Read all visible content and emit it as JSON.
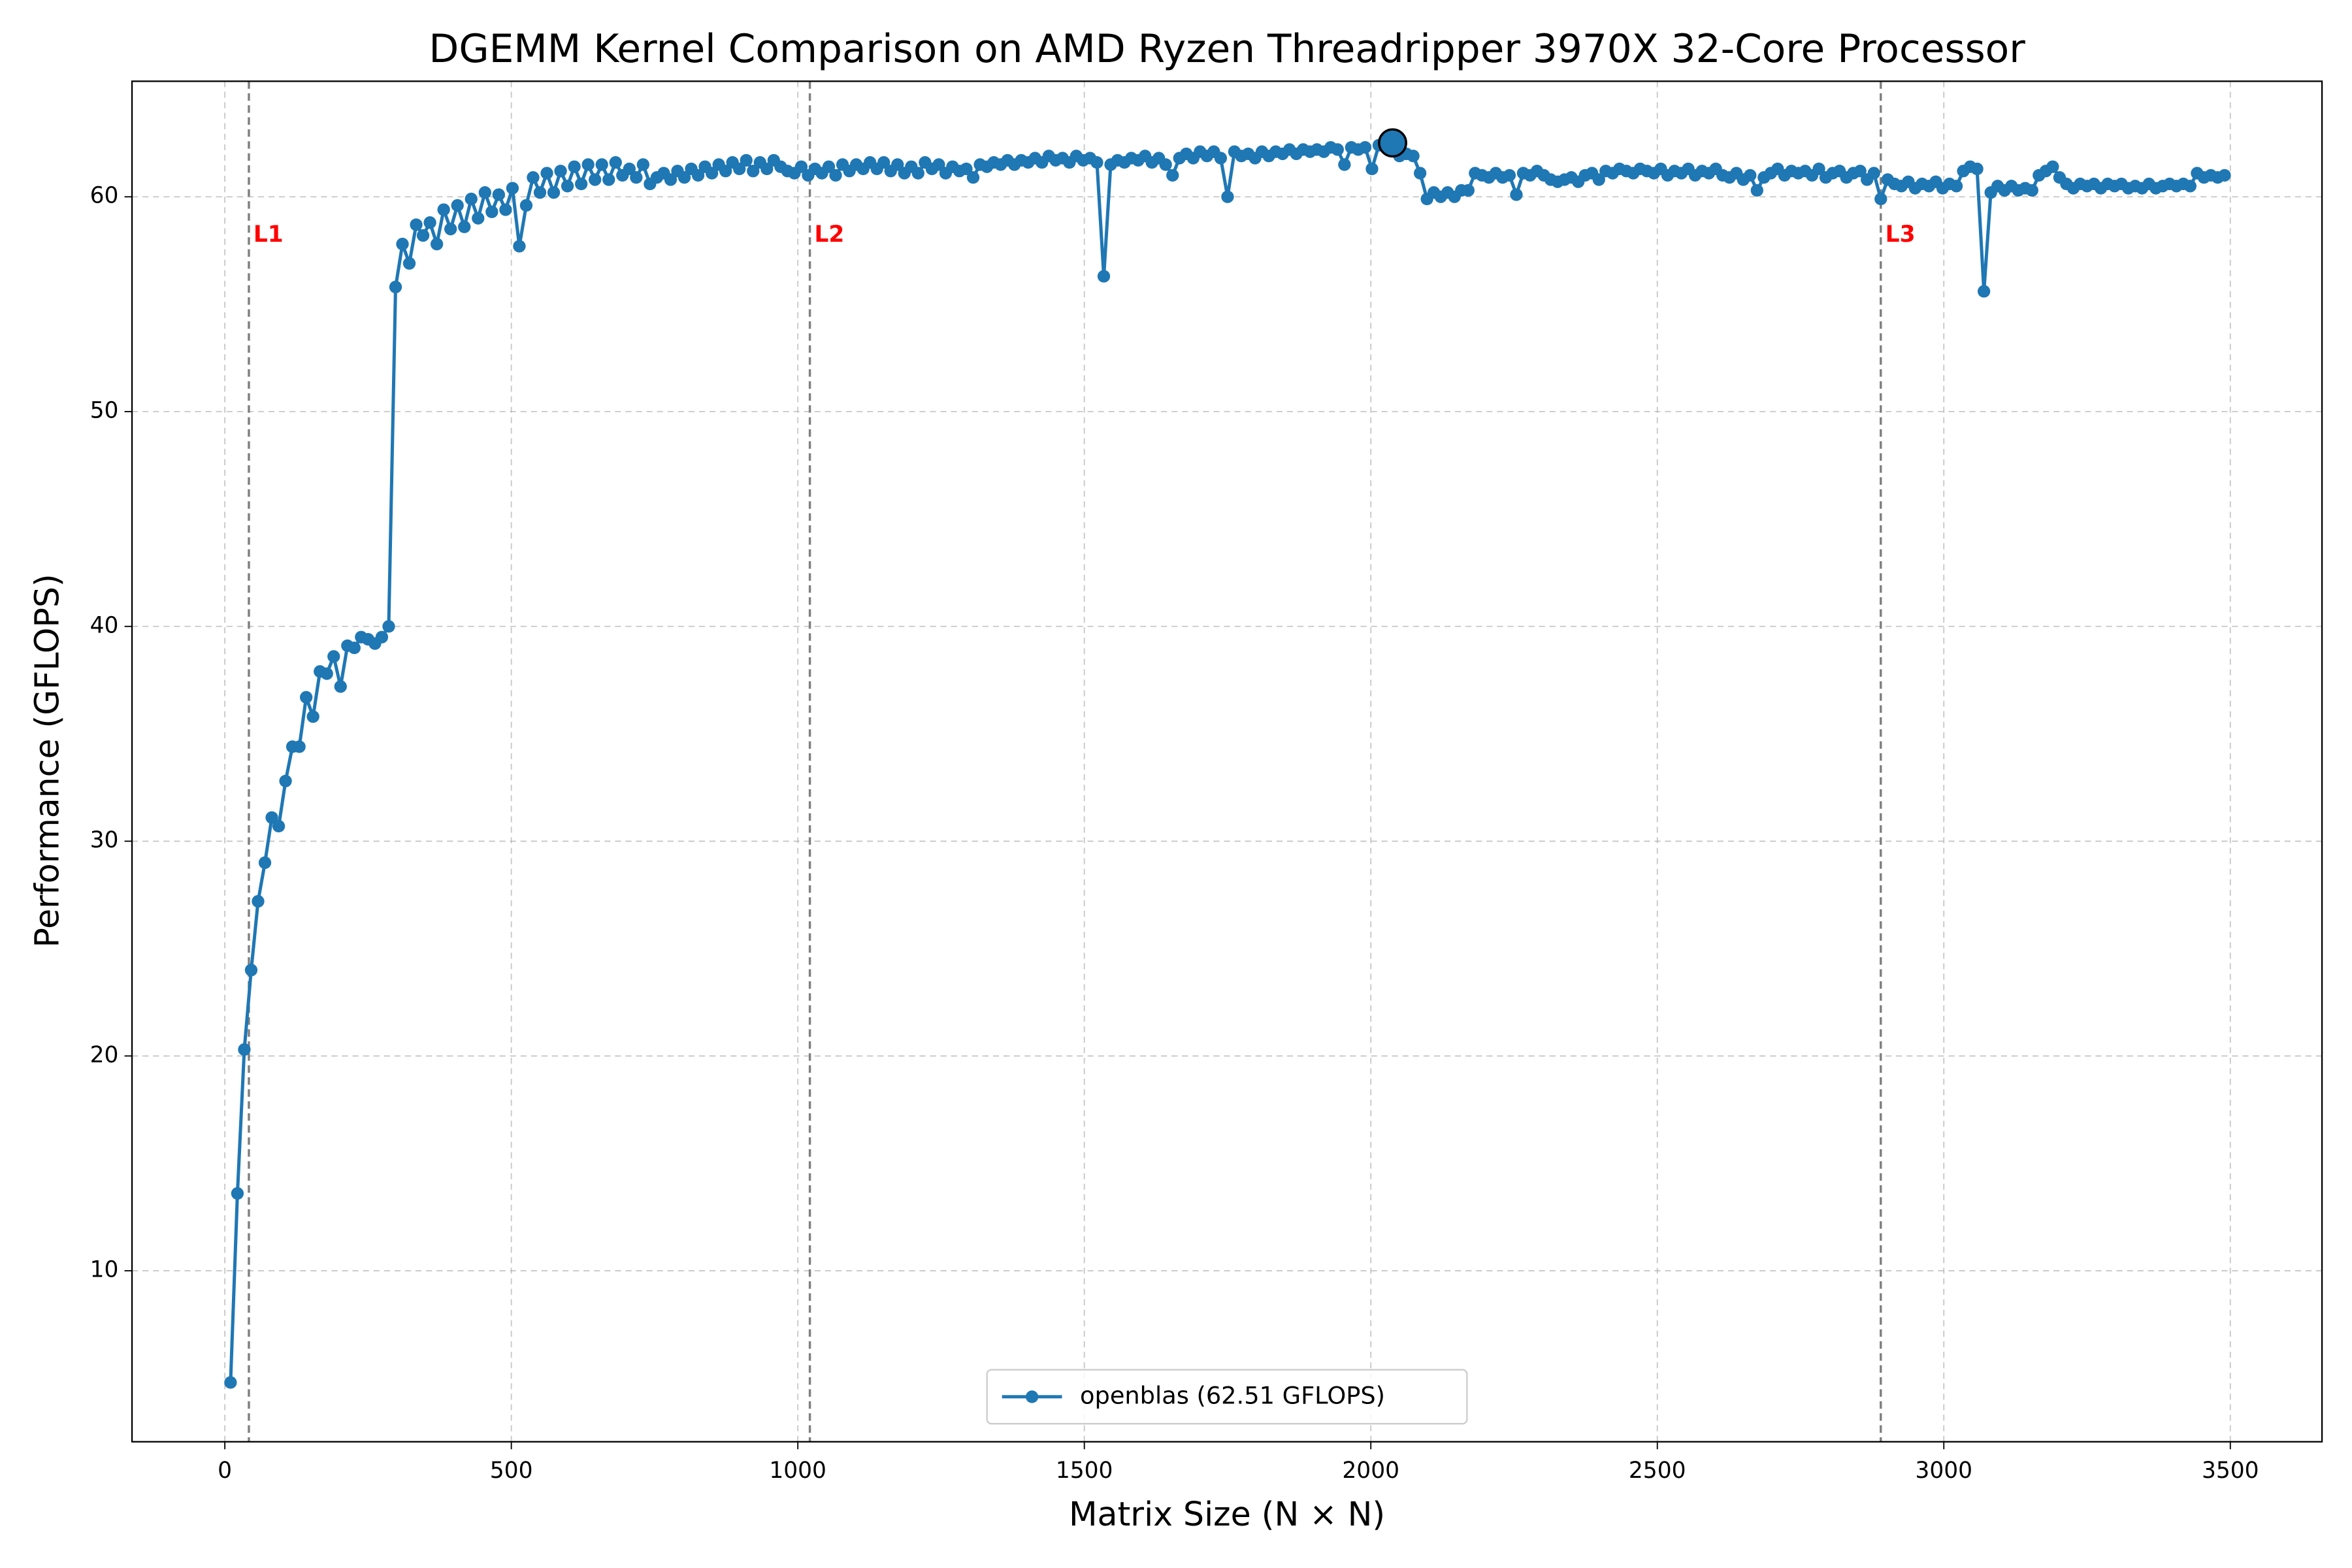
{
  "chart_data": {
    "type": "line",
    "title": "DGEMM Kernel Comparison on AMD Ryzen Threadripper 3970X 32-Core Processor",
    "xlabel": "Matrix Size (N × N)",
    "ylabel": "Performance (GFLOPS)",
    "xlim": [
      -162,
      3660
    ],
    "ylim": [
      2.04,
      65.38
    ],
    "xticks": [
      0,
      500,
      1000,
      1500,
      2000,
      2500,
      3000,
      3500
    ],
    "yticks": [
      10,
      20,
      30,
      40,
      50,
      60
    ],
    "grid": true,
    "legend": "lower center",
    "x": [
      10,
      22,
      34,
      46,
      58,
      70,
      82,
      94,
      106,
      118,
      130,
      142,
      154,
      166,
      178,
      190,
      202,
      214,
      226,
      238,
      250,
      262,
      274,
      286,
      298,
      310,
      322,
      334,
      346,
      358,
      370,
      382,
      394,
      406,
      418,
      430,
      442,
      454,
      466,
      478,
      490,
      502,
      514,
      526,
      538,
      550,
      562,
      574,
      586,
      598,
      610,
      622,
      634,
      646,
      658,
      670,
      682,
      694,
      706,
      718,
      730,
      742,
      754,
      766,
      778,
      790,
      802,
      814,
      826,
      838,
      850,
      862,
      874,
      886,
      898,
      910,
      922,
      934,
      946,
      958,
      970,
      982,
      994,
      1006,
      1018,
      1030,
      1042,
      1054,
      1066,
      1078,
      1090,
      1102,
      1114,
      1126,
      1138,
      1150,
      1162,
      1174,
      1186,
      1198,
      1210,
      1222,
      1234,
      1246,
      1258,
      1270,
      1282,
      1294,
      1306,
      1318,
      1330,
      1342,
      1354,
      1366,
      1378,
      1390,
      1402,
      1414,
      1426,
      1438,
      1450,
      1462,
      1474,
      1486,
      1498,
      1510,
      1522,
      1534,
      1546,
      1558,
      1570,
      1582,
      1594,
      1606,
      1618,
      1630,
      1642,
      1654,
      1666,
      1678,
      1690,
      1702,
      1714,
      1726,
      1738,
      1750,
      1762,
      1774,
      1786,
      1798,
      1810,
      1822,
      1834,
      1846,
      1858,
      1870,
      1882,
      1894,
      1906,
      1918,
      1930,
      1942,
      1954,
      1966,
      1978,
      1990,
      2002,
      2014,
      2026,
      2038,
      2050,
      2062,
      2074,
      2086,
      2098,
      2110,
      2122,
      2134,
      2146,
      2158,
      2170,
      2182,
      2194,
      2206,
      2218,
      2230,
      2242,
      2254,
      2266,
      2278,
      2290,
      2302,
      2314,
      2326,
      2338,
      2350,
      2362,
      2374,
      2386,
      2398,
      2410,
      2422,
      2434,
      2446,
      2458,
      2470,
      2482,
      2494,
      2506,
      2518,
      2530,
      2542,
      2554,
      2566,
      2578,
      2590,
      2602,
      2614,
      2626,
      2638,
      2650,
      2662,
      2674,
      2686,
      2698,
      2710,
      2722,
      2734,
      2746,
      2758,
      2770,
      2782,
      2794,
      2806,
      2818,
      2830,
      2842,
      2854,
      2866,
      2878,
      2890,
      2902,
      2914,
      2926,
      2938,
      2950,
      2962,
      2974,
      2986,
      2998,
      3010,
      3022,
      3034,
      3046,
      3058,
      3070,
      3082,
      3094,
      3106,
      3118,
      3130,
      3142,
      3154,
      3166,
      3178,
      3190,
      3202,
      3214,
      3226,
      3238,
      3250,
      3262,
      3274,
      3286,
      3298,
      3310,
      3322,
      3334,
      3346,
      3358,
      3370,
      3382,
      3394,
      3406,
      3418,
      3430,
      3442,
      3454,
      3466,
      3478,
      3490
    ],
    "series": [
      {
        "name": "openblas (62.51 GFLOPS)",
        "color": "#1f77b4",
        "values": [
          4.8,
          13.6,
          20.3,
          24.0,
          27.2,
          29.0,
          31.1,
          30.7,
          32.8,
          34.4,
          34.4,
          36.7,
          35.8,
          37.9,
          37.8,
          38.6,
          37.2,
          39.1,
          39.0,
          39.5,
          39.4,
          39.2,
          39.5,
          40.0,
          55.8,
          57.8,
          56.9,
          58.7,
          58.2,
          58.8,
          57.8,
          59.4,
          58.5,
          59.6,
          58.6,
          59.9,
          59.0,
          60.2,
          59.3,
          60.1,
          59.4,
          60.4,
          57.7,
          59.6,
          60.9,
          60.2,
          61.1,
          60.2,
          61.2,
          60.5,
          61.4,
          60.6,
          61.5,
          60.8,
          61.5,
          60.8,
          61.6,
          61.0,
          61.3,
          60.9,
          61.5,
          60.6,
          60.9,
          61.1,
          60.8,
          61.2,
          60.9,
          61.3,
          61.0,
          61.4,
          61.1,
          61.5,
          61.2,
          61.6,
          61.3,
          61.7,
          61.2,
          61.6,
          61.3,
          61.7,
          61.4,
          61.2,
          61.1,
          61.4,
          61.0,
          61.3,
          61.1,
          61.4,
          61.0,
          61.5,
          61.2,
          61.5,
          61.3,
          61.6,
          61.3,
          61.6,
          61.2,
          61.5,
          61.1,
          61.4,
          61.1,
          61.6,
          61.3,
          61.5,
          61.1,
          61.4,
          61.2,
          61.3,
          60.9,
          61.5,
          61.4,
          61.6,
          61.5,
          61.7,
          61.5,
          61.7,
          61.6,
          61.8,
          61.6,
          61.9,
          61.7,
          61.8,
          61.6,
          61.9,
          61.7,
          61.8,
          61.6,
          56.3,
          61.5,
          61.7,
          61.6,
          61.8,
          61.7,
          61.9,
          61.6,
          61.8,
          61.5,
          61.0,
          61.8,
          62.0,
          61.8,
          62.1,
          61.9,
          62.1,
          61.8,
          60.0,
          62.1,
          61.9,
          62.0,
          61.8,
          62.1,
          61.9,
          62.1,
          62.0,
          62.2,
          62.0,
          62.2,
          62.1,
          62.2,
          62.1,
          62.3,
          62.2,
          61.5,
          62.3,
          62.2,
          62.3,
          61.3,
          62.4,
          62.3,
          62.5,
          61.9,
          62.0,
          61.9,
          61.1,
          59.9,
          60.2,
          60.0,
          60.2,
          60.0,
          60.3,
          60.3,
          61.1,
          61.0,
          60.9,
          61.1,
          60.9,
          61.0,
          60.1,
          61.1,
          61.0,
          61.2,
          61.0,
          60.8,
          60.7,
          60.8,
          60.9,
          60.7,
          61.0,
          61.1,
          60.8,
          61.2,
          61.1,
          61.3,
          61.2,
          61.1,
          61.3,
          61.2,
          61.1,
          61.3,
          61.0,
          61.2,
          61.1,
          61.3,
          61.0,
          61.2,
          61.1,
          61.3,
          61.0,
          60.9,
          61.1,
          60.8,
          61.0,
          60.3,
          60.9,
          61.1,
          61.3,
          61.0,
          61.2,
          61.1,
          61.2,
          61.0,
          61.3,
          60.9,
          61.1,
          61.2,
          60.9,
          61.1,
          61.2,
          60.8,
          61.1,
          59.9,
          60.8,
          60.6,
          60.5,
          60.7,
          60.4,
          60.6,
          60.5,
          60.7,
          60.4,
          60.6,
          60.5,
          61.2,
          61.4,
          61.3,
          55.6,
          60.2,
          60.5,
          60.3,
          60.5,
          60.3,
          60.4,
          60.3,
          61.0,
          61.2,
          61.4,
          60.9,
          60.6,
          60.4,
          60.6,
          60.5,
          60.6,
          60.4,
          60.6,
          60.5,
          60.6,
          60.4,
          60.5,
          60.4,
          60.6,
          60.4,
          60.5,
          60.6,
          60.5,
          60.6,
          60.5,
          61.1,
          60.9,
          61.0,
          60.9,
          61.0
        ]
      }
    ],
    "vlines": [
      {
        "label": "L1",
        "x": 42,
        "color": "#ff0000"
      },
      {
        "label": "L2",
        "x": 1021,
        "color": "#ff0000"
      },
      {
        "label": "L3",
        "x": 2890,
        "color": "#ff0000"
      }
    ],
    "highlight": {
      "x": 2038,
      "y": 62.51
    }
  }
}
